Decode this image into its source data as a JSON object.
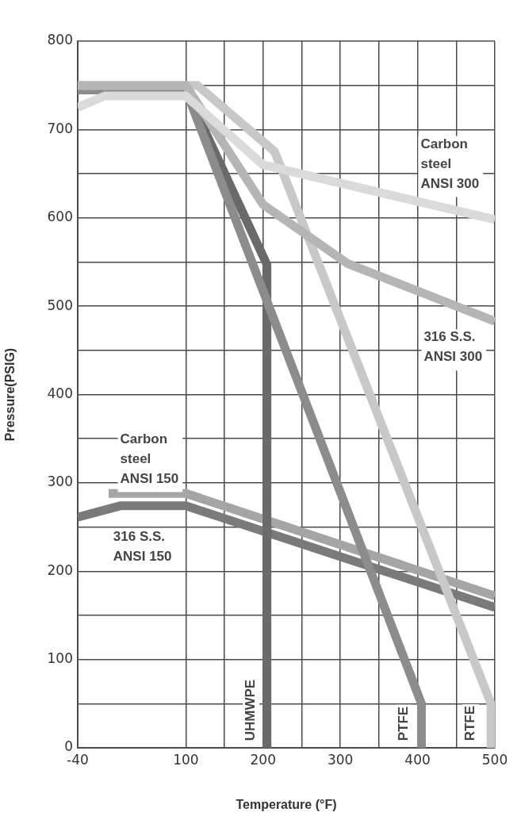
{
  "chart_data": {
    "type": "line",
    "xlabel": "Temperature (°F)",
    "ylabel": "Pressure(PSIG)",
    "xlim": [
      -40,
      500
    ],
    "ylim": [
      0,
      800
    ],
    "xticks": [
      -40,
      100,
      {
        "value": 150,
        "label": null
      },
      200,
      {
        "value": 250,
        "label": null
      },
      300,
      {
        "value": 350,
        "label": null
      },
      400,
      {
        "value": 450,
        "label": null
      },
      500
    ],
    "yticks": [
      0,
      {
        "value": 50,
        "label": null
      },
      100,
      {
        "value": 150,
        "label": null
      },
      200,
      {
        "value": 250,
        "label": null
      },
      300,
      {
        "value": 350,
        "label": null
      },
      400,
      {
        "value": 450,
        "label": null
      },
      500,
      {
        "value": 550,
        "label": null
      },
      600,
      {
        "value": 650,
        "label": null
      },
      700,
      {
        "value": 750,
        "label": null
      },
      800
    ],
    "grid": true,
    "legend": false,
    "marker": "none",
    "line_style": "solid",
    "series": [
      {
        "name": "Carbon steel ANSI 300",
        "color": "#dadada",
        "x": [
          -40,
          -5,
          100,
          200,
          500
        ],
        "values": [
          725,
          738,
          738,
          660,
          598
        ]
      },
      {
        "name": "316 S.S. ANSI 300",
        "color": "#b5b5b5",
        "x": [
          -40,
          100,
          200,
          310,
          500
        ],
        "values": [
          750,
          750,
          615,
          548,
          483
        ]
      },
      {
        "name": "RTFE",
        "color": "#c8c8c8",
        "x": [
          -40,
          115,
          215,
          495,
          495
        ],
        "values": [
          750,
          750,
          675,
          50,
          0
        ]
      },
      {
        "name": "PTFE",
        "color": "#8c8c8c",
        "x": [
          -40,
          100,
          405,
          405
        ],
        "values": [
          745,
          745,
          50,
          0
        ]
      },
      {
        "name": "UHMWPE",
        "color": "#6a6a6a",
        "x": [
          -40,
          100,
          205,
          205
        ],
        "values": [
          745,
          745,
          547,
          0
        ]
      },
      {
        "name": "Carbon steel ANSI 150",
        "color": "#a5a5a5",
        "x": [
          0,
          100,
          500
        ],
        "values": [
          288,
          288,
          172
        ]
      },
      {
        "name": "316 S.S. ANSI 150",
        "color": "#7a7a7a",
        "x": [
          -40,
          15,
          100,
          500
        ],
        "values": [
          261,
          274,
          274,
          159
        ]
      }
    ]
  }
}
